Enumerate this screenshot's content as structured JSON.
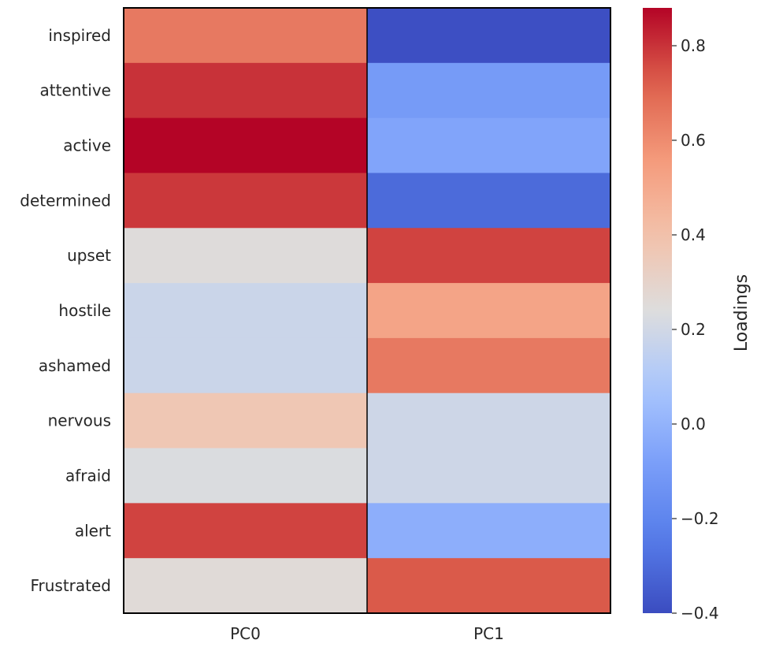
{
  "chart_data": {
    "type": "heatmap",
    "title": "",
    "x_categories": [
      "PC0",
      "PC1"
    ],
    "y_categories": [
      "inspired",
      "attentive",
      "active",
      "determined",
      "upset",
      "hostile",
      "ashamed",
      "nervous",
      "afraid",
      "alert",
      "Frustrated"
    ],
    "values": [
      [
        0.65,
        -0.39
      ],
      [
        0.8,
        -0.1
      ],
      [
        0.88,
        -0.06
      ],
      [
        0.79,
        -0.3
      ],
      [
        0.25,
        0.77
      ],
      [
        0.18,
        0.52
      ],
      [
        0.18,
        0.65
      ],
      [
        0.37,
        0.19
      ],
      [
        0.23,
        0.19
      ],
      [
        0.77,
        -0.02
      ],
      [
        0.26,
        0.73
      ]
    ],
    "colormap": "coolwarm",
    "vmin": -0.4,
    "vmax": 0.88,
    "colorbar": {
      "label": "Loadings",
      "ticks": [
        -0.4,
        -0.2,
        0.0,
        0.2,
        0.4,
        0.6,
        0.8
      ],
      "tick_labels": [
        "−0.4",
        "−0.2",
        "0.0",
        "0.2",
        "0.4",
        "0.6",
        "0.8"
      ]
    }
  }
}
